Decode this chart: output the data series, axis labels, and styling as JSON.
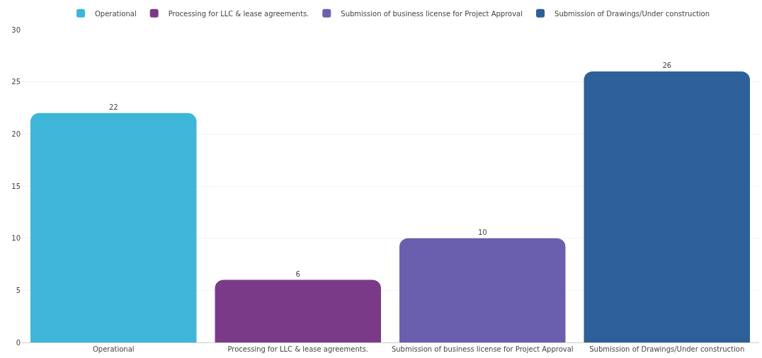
{
  "chart_data": {
    "type": "bar",
    "categories": [
      "Operational",
      "Processing for LLC & lease agreements.",
      "Submission of business license for Project Approval",
      "Submission of Drawings/Under construction"
    ],
    "series": [
      {
        "name": "Operational",
        "color": "#3db6d8",
        "values": [
          22,
          null,
          null,
          null
        ]
      },
      {
        "name": "Processing for LLC & lease agreements.",
        "color": "#7b3a88",
        "values": [
          null,
          6,
          null,
          null
        ]
      },
      {
        "name": "Submission of business license for Project Approval",
        "color": "#6a5fae",
        "values": [
          null,
          null,
          10,
          null
        ]
      },
      {
        "name": "Submission of Drawings/Under construction",
        "color": "#2d5f98",
        "values": [
          null,
          null,
          null,
          26
        ]
      }
    ],
    "ylim": [
      0,
      30
    ],
    "yticks": [
      0,
      5,
      10,
      15,
      20,
      25,
      30
    ],
    "grid": "y",
    "legend": "top",
    "data_labels": true
  }
}
